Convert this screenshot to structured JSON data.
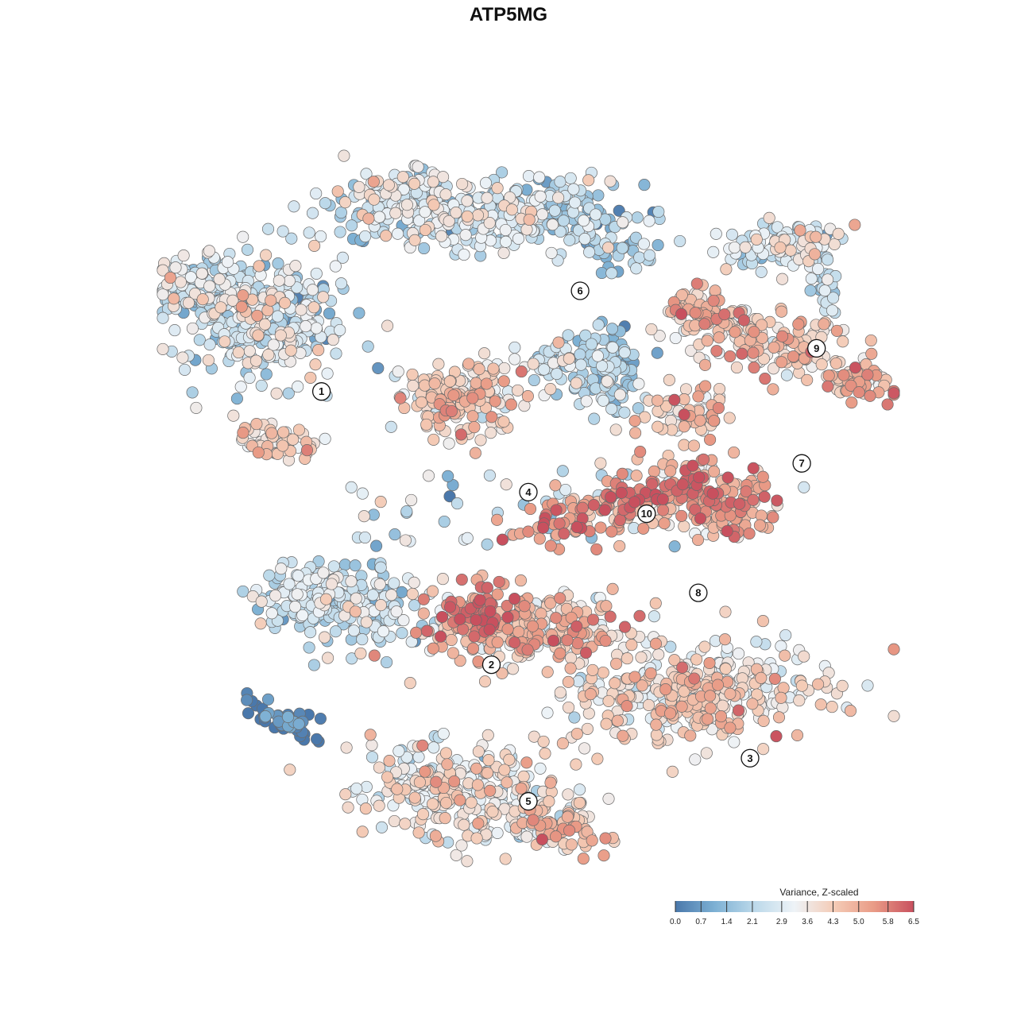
{
  "chart_data": {
    "type": "scatter",
    "title": "ATP5MG",
    "xlabel": "",
    "ylabel": "",
    "grid": false,
    "legend_position": "bottom-right",
    "colorbar": {
      "title": "Variance, Z-scaled",
      "min": 0.0,
      "max": 6.5,
      "ticks": [
        "0.0",
        "0.7",
        "1.4",
        "2.1",
        "2.9",
        "3.6",
        "4.3",
        "5.0",
        "5.8",
        "6.5"
      ],
      "colors": [
        "#4a78ab",
        "#7eb1d4",
        "#bcd9ea",
        "#eef3f7",
        "#f4cbb6",
        "#e99b86",
        "#c8505e"
      ]
    },
    "clusters": [
      {
        "label": "1",
        "x": 22,
        "y": 66,
        "mean_value": 2.7
      },
      {
        "label": "2",
        "x": 45,
        "y": 28,
        "mean_value": 2.4
      },
      {
        "label": "3",
        "x": 80,
        "y": 15,
        "mean_value": 4.0
      },
      {
        "label": "4",
        "x": 50,
        "y": 52,
        "mean_value": 3.9
      },
      {
        "label": "5",
        "x": 50,
        "y": 9,
        "mean_value": 3.5
      },
      {
        "label": "6",
        "x": 57,
        "y": 80,
        "mean_value": 2.5
      },
      {
        "label": "7",
        "x": 87,
        "y": 56,
        "mean_value": 4.4
      },
      {
        "label": "8",
        "x": 73,
        "y": 38,
        "mean_value": 5.4
      },
      {
        "label": "9",
        "x": 89,
        "y": 72,
        "mean_value": 2.9
      },
      {
        "label": "10",
        "x": 66,
        "y": 49,
        "mean_value": 2.0
      }
    ]
  }
}
